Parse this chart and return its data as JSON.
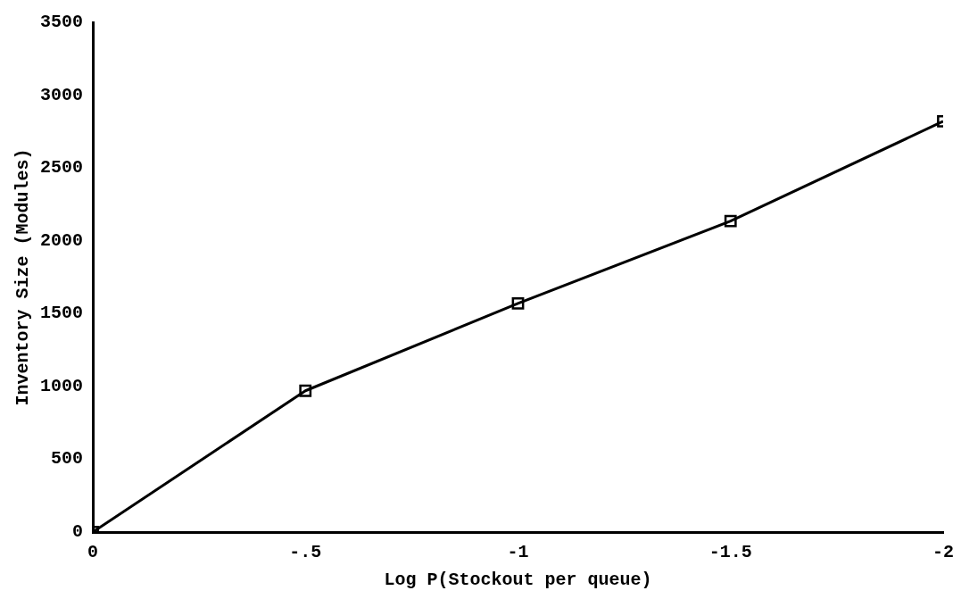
{
  "chart_data": {
    "type": "line",
    "xlabel": "Log P(Stockout per queue)",
    "ylabel": "Inventory Size (Modules)",
    "x": [
      0,
      -0.5,
      -1,
      -1.5,
      -2
    ],
    "series": [
      {
        "color": "#000000",
        "values": [
          0,
          970,
          1570,
          2135,
          2820
        ]
      }
    ],
    "xlim": [
      0,
      -2
    ],
    "xticks": [
      0,
      {
        "value": -0.5,
        "label": "-.5"
      },
      -1,
      -1.5,
      -2
    ],
    "ylim": [
      0,
      3500
    ],
    "yticks": [
      0,
      500,
      1000,
      1500,
      2000,
      2500,
      3000,
      3500
    ],
    "grid": false,
    "legend": false,
    "marker": "square",
    "line_style": "solid"
  }
}
